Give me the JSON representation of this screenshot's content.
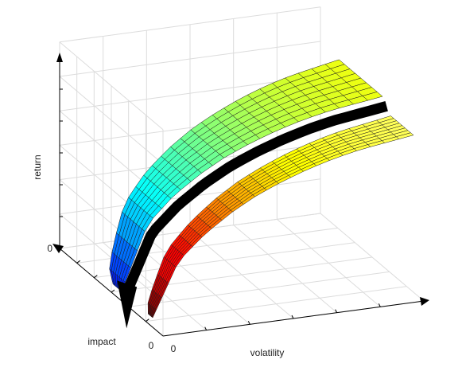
{
  "chart_data": {
    "type": "surface3d",
    "title": "",
    "xlabel": "volatility",
    "ylabel": "impact",
    "zlabel": "return",
    "x_tick_labels": [
      "0"
    ],
    "y_tick_labels": [
      "0"
    ],
    "z_tick_labels": [
      "0"
    ],
    "grid": true,
    "x_range": [
      0,
      1
    ],
    "y_range": [
      0,
      1
    ],
    "z_range": [
      0,
      1
    ],
    "series": [
      {
        "colormap": "jet",
        "x": [
          0.0,
          0.1,
          0.2,
          0.3,
          0.4,
          0.5,
          0.6,
          0.7,
          0.8,
          0.9,
          1.0
        ],
        "z": [
          0.0,
          0.36,
          0.5,
          0.6,
          0.68,
          0.74,
          0.79,
          0.83,
          0.86,
          0.88,
          0.9
        ]
      },
      {
        "colormap": "hot",
        "x": [
          0.0,
          0.1,
          0.2,
          0.3,
          0.4,
          0.5,
          0.6,
          0.7,
          0.8,
          0.9,
          1.0
        ],
        "z": [
          0.0,
          0.3,
          0.43,
          0.53,
          0.61,
          0.67,
          0.72,
          0.76,
          0.79,
          0.81,
          0.83
        ]
      }
    ],
    "boundary_curve_color": "#000000"
  },
  "colors": {
    "background": "#ffffff",
    "grid": "#dcdcdc",
    "axis": "#000000",
    "mesh": "#1a1a1a"
  }
}
